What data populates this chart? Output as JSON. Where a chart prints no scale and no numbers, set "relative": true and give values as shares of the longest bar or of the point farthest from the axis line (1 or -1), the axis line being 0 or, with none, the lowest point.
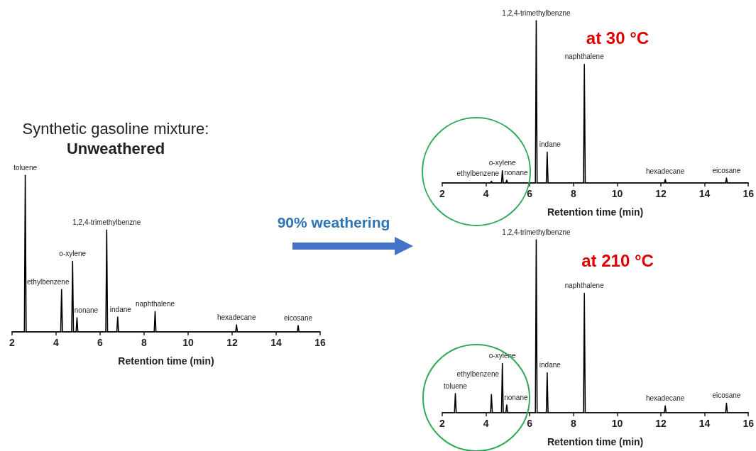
{
  "chart_data": [
    {
      "type": "line",
      "title": "Synthetic gasoline mixture:",
      "subtitle": "Unweathered",
      "xlabel": "Retention time (min)",
      "relative": true,
      "marker": "none",
      "xlim": [
        2,
        16
      ],
      "xticks": [
        2,
        4,
        6,
        8,
        10,
        12,
        14,
        16
      ],
      "series": [
        {
          "color": "#000000",
          "x": [
            2,
            2.56,
            2.6,
            2.64,
            4.21,
            4.25,
            4.29,
            4.71,
            4.75,
            4.79,
            4.91,
            4.95,
            4.99,
            6.26,
            6.3,
            6.34,
            6.76,
            6.8,
            6.84,
            8.46,
            8.5,
            8.54,
            12.16,
            12.2,
            12.24,
            14.96,
            15,
            15.04,
            16
          ],
          "values": [
            0,
            0,
            1,
            0,
            0,
            0.27,
            0,
            0,
            0.45,
            0,
            0,
            0.09,
            0,
            0,
            0.65,
            0,
            0,
            0.095,
            0,
            0,
            0.13,
            0,
            0,
            0.045,
            0,
            0,
            0.04,
            0,
            0
          ]
        }
      ],
      "annotations": [
        {
          "text": "toluene",
          "x": 2.6,
          "y": 1
        },
        {
          "text": "ethylbenzene",
          "x": 4.25,
          "y": 0.27
        },
        {
          "text": "o-xylene",
          "x": 4.75,
          "y": 0.45
        },
        {
          "text": "nonane",
          "x": 4.95,
          "y": 0.09
        },
        {
          "text": "1,2,4-trimethylbenzne",
          "x": 6.3,
          "y": 0.65
        },
        {
          "text": "indane",
          "x": 6.8,
          "y": 0.095
        },
        {
          "text": "naphthalene",
          "x": 8.5,
          "y": 0.13
        },
        {
          "text": "hexadecane",
          "x": 12.2,
          "y": 0.045
        },
        {
          "text": "eicosane",
          "x": 15,
          "y": 0.04
        }
      ]
    },
    {
      "type": "other",
      "annotations": [
        "90% weathering"
      ]
    },
    {
      "type": "line",
      "title": "at 30 °C",
      "xlabel": "Retention time (min)",
      "relative": true,
      "marker": "none",
      "xlim": [
        2,
        16
      ],
      "xticks": [
        2,
        4,
        6,
        8,
        10,
        12,
        14,
        16
      ],
      "series": [
        {
          "color": "#000000",
          "x": [
            2,
            4.21,
            4.25,
            4.29,
            4.71,
            4.75,
            4.79,
            4.91,
            4.95,
            4.99,
            6.26,
            6.3,
            6.34,
            6.76,
            6.8,
            6.84,
            8.46,
            8.5,
            8.54,
            12.16,
            12.2,
            12.24,
            14.96,
            15,
            15.04,
            16
          ],
          "values": [
            0,
            0,
            0.01,
            0,
            0,
            0.075,
            0,
            0,
            0.017,
            0,
            0,
            1,
            0,
            0,
            0.19,
            0,
            0,
            0.73,
            0,
            0,
            0.022,
            0,
            0,
            0.03,
            0,
            0
          ]
        }
      ],
      "annotations": [
        {
          "text": "ethylbenzene",
          "x": 4.25,
          "y": 0.01
        },
        {
          "text": "o-xylene",
          "x": 4.75,
          "y": 0.075
        },
        {
          "text": "nonane",
          "x": 4.95,
          "y": 0.017
        },
        {
          "text": "1,2,4-trimethylbenzne",
          "x": 6.3,
          "y": 1
        },
        {
          "text": "indane",
          "x": 6.8,
          "y": 0.19
        },
        {
          "text": "naphthalene",
          "x": 8.5,
          "y": 0.73
        },
        {
          "text": "hexadecane",
          "x": 12.2,
          "y": 0.022
        },
        {
          "text": "eicosane",
          "x": 15,
          "y": 0.03
        }
      ]
    },
    {
      "type": "line",
      "title": "at 210 °C",
      "xlabel": "Retention time (min)",
      "relative": true,
      "marker": "none",
      "xlim": [
        2,
        16
      ],
      "xticks": [
        2,
        4,
        6,
        8,
        10,
        12,
        14,
        16
      ],
      "series": [
        {
          "color": "#000000",
          "x": [
            2,
            2.56,
            2.6,
            2.64,
            4.21,
            4.25,
            4.29,
            4.71,
            4.75,
            4.79,
            4.91,
            4.95,
            4.99,
            6.26,
            6.3,
            6.34,
            6.76,
            6.8,
            6.84,
            8.46,
            8.5,
            8.54,
            12.16,
            12.2,
            12.24,
            14.96,
            15,
            15.04,
            16
          ],
          "values": [
            0,
            0,
            0.11,
            0,
            0,
            0.105,
            0,
            0,
            0.285,
            0,
            0,
            0.045,
            0,
            0,
            1,
            0,
            0,
            0.23,
            0,
            0,
            0.69,
            0,
            0,
            0.04,
            0,
            0,
            0.055,
            0,
            0
          ]
        }
      ],
      "annotations": [
        {
          "text": "toluene",
          "x": 2.6,
          "y": 0.11
        },
        {
          "text": "ethylbenzene",
          "x": 4.25,
          "y": 0.105
        },
        {
          "text": "o-xylene",
          "x": 4.75,
          "y": 0.285
        },
        {
          "text": "nonane",
          "x": 4.95,
          "y": 0.045
        },
        {
          "text": "1,2,4-trimethylbenzne",
          "x": 6.3,
          "y": 1
        },
        {
          "text": "indane",
          "x": 6.8,
          "y": 0.23
        },
        {
          "text": "naphthalene",
          "x": 8.5,
          "y": 0.69
        },
        {
          "text": "hexadecane",
          "x": 12.2,
          "y": 0.04
        },
        {
          "text": "eicosane",
          "x": 15,
          "y": 0.055
        }
      ]
    }
  ]
}
